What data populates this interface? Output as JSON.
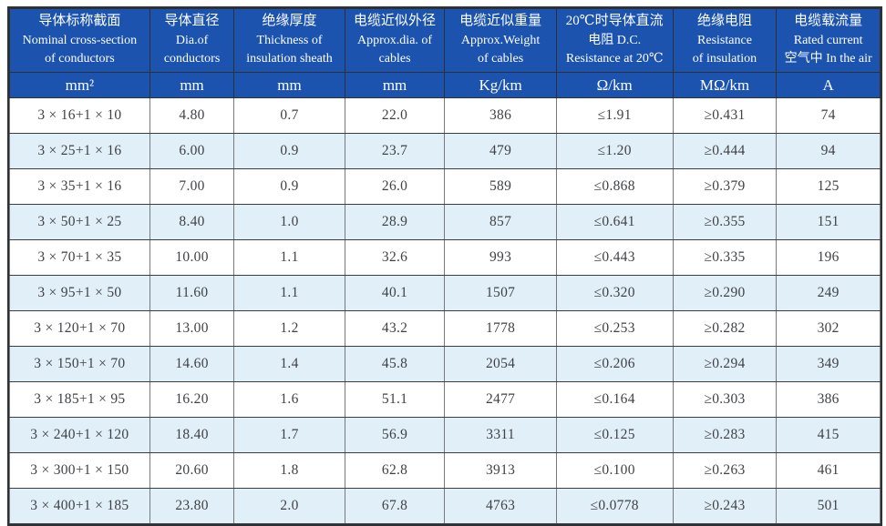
{
  "colors": {
    "header_bg": "#1b53ae",
    "header_text": "#ffffff",
    "row_bg": "#ffffff",
    "row_alt_bg": "#e1eff9",
    "outer_border": "#2e3133",
    "vertical_grid": "#77797c",
    "horizontal_grid": "#3a3d40",
    "body_text": "#3f4245"
  },
  "table": {
    "columns": [
      {
        "lines": [
          "导体标称截面",
          "Nominal cross-section",
          "of conductors"
        ],
        "unit": "mm²"
      },
      {
        "lines": [
          "导体直径",
          "Dia.of",
          "conductors"
        ],
        "unit": "mm"
      },
      {
        "lines": [
          "绝缘厚度",
          "Thickness of",
          "insulation sheath"
        ],
        "unit": "mm"
      },
      {
        "lines": [
          "电缆近似外径",
          "Approx.dia. of",
          "cables"
        ],
        "unit": "mm"
      },
      {
        "lines": [
          "电缆近似重量",
          "Approx.Weight",
          "of cables"
        ],
        "unit": "Kg/km"
      },
      {
        "lines": [
          "20℃时导体直流",
          "电阻 D.C.",
          "Resistance at 20℃"
        ],
        "unit": "Ω/km"
      },
      {
        "lines": [
          "绝缘电阻",
          "Resistance",
          "of insulation"
        ],
        "unit": "MΩ/km"
      },
      {
        "lines": [
          "电缆载流量",
          "Rated current",
          "空气中 In the air"
        ],
        "unit": "A"
      }
    ],
    "rows": [
      [
        "3 × 16+1 × 10",
        "4.80",
        "0.7",
        "22.0",
        "386",
        "≤1.91",
        "≥0.431",
        "74"
      ],
      [
        "3 × 25+1 × 16",
        "6.00",
        "0.9",
        "23.7",
        "479",
        "≤1.20",
        "≥0.444",
        "94"
      ],
      [
        "3 × 35+1 × 16",
        "7.00",
        "0.9",
        "26.0",
        "589",
        "≤0.868",
        "≥0.379",
        "125"
      ],
      [
        "3 × 50+1 × 25",
        "8.40",
        "1.0",
        "28.9",
        "857",
        "≤0.641",
        "≥0.355",
        "151"
      ],
      [
        "3 × 70+1 × 35",
        "10.00",
        "1.1",
        "32.6",
        "993",
        "≤0.443",
        "≥0.335",
        "196"
      ],
      [
        "3 × 95+1 × 50",
        "11.60",
        "1.1",
        "40.1",
        "1507",
        "≤0.320",
        "≥0.290",
        "249"
      ],
      [
        "3 × 120+1 × 70",
        "13.00",
        "1.2",
        "43.2",
        "1778",
        "≤0.253",
        "≥0.282",
        "302"
      ],
      [
        "3 × 150+1 × 70",
        "14.60",
        "1.4",
        "45.8",
        "2054",
        "≤0.206",
        "≥0.294",
        "349"
      ],
      [
        "3 × 185+1 × 95",
        "16.20",
        "1.6",
        "51.1",
        "2477",
        "≤0.164",
        "≥0.303",
        "386"
      ],
      [
        "3 × 240+1 × 120",
        "18.40",
        "1.7",
        "56.9",
        "3311",
        "≤0.125",
        "≥0.283",
        "415"
      ],
      [
        "3 × 300+1 × 150",
        "20.60",
        "1.8",
        "62.8",
        "3913",
        "≤0.100",
        "≥0.263",
        "461"
      ],
      [
        "3 × 400+1 × 185",
        "23.80",
        "2.0",
        "67.8",
        "4763",
        "≤0.0778",
        "≥0.243",
        "501"
      ]
    ]
  }
}
